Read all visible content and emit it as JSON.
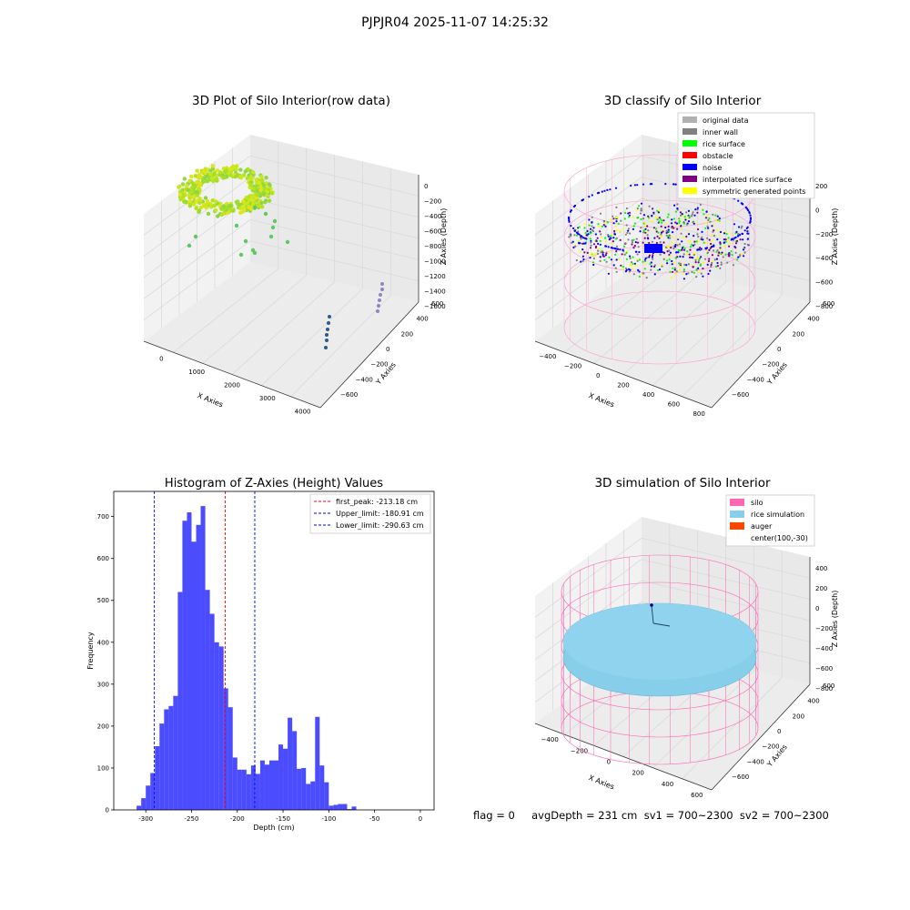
{
  "figure_title": "PJPJR04 2025-11-07 14:25:32",
  "panels": {
    "raw": {
      "title": "3D Plot of Silo Interior(row data)",
      "x_label": "X Axies",
      "y_label": "Y Axies",
      "z_label": "Z Axies (Depth)",
      "x_ticks": [
        "0",
        "1000",
        "2000",
        "3000",
        "4000"
      ],
      "y_ticks": [
        "600",
        "400",
        "200",
        "0",
        "−200",
        "−400",
        "−600"
      ],
      "z_ticks": [
        "0",
        "−200",
        "−400",
        "−600",
        "−800",
        "−1000",
        "−1200",
        "−1400",
        "−1600"
      ]
    },
    "classify": {
      "title": "3D classify of Silo Interior",
      "x_label": "X Axies",
      "y_label": "Y Axies",
      "z_label": "Z Axies (Depth)",
      "x_ticks": [
        "−400",
        "−200",
        "0",
        "200",
        "400",
        "600",
        "800"
      ],
      "y_ticks": [
        "600",
        "400",
        "200",
        "0",
        "−200",
        "−400",
        "−600"
      ],
      "z_ticks": [
        "200",
        "0",
        "−200",
        "−400",
        "−600",
        "−800"
      ],
      "legend": [
        {
          "label": "original data",
          "color": "#b0b0b0"
        },
        {
          "label": "inner wall",
          "color": "#808080"
        },
        {
          "label": "rice surface",
          "color": "#00ff00"
        },
        {
          "label": "obstacle",
          "color": "#ff0000"
        },
        {
          "label": "noise",
          "color": "#0000ff"
        },
        {
          "label": "interpolated rice surface",
          "color": "#800080"
        },
        {
          "label": "symmetric generated points",
          "color": "#ffff00"
        }
      ]
    },
    "simulation": {
      "title": "3D simulation of Silo Interior",
      "x_label": "X Axies",
      "y_label": "Y Axies",
      "z_label": "Z Axies (Depth)",
      "x_ticks": [
        "−400",
        "−200",
        "0",
        "200",
        "400",
        "600"
      ],
      "y_ticks": [
        "600",
        "400",
        "200",
        "0",
        "−200",
        "−400",
        "−600"
      ],
      "z_ticks": [
        "400",
        "200",
        "0",
        "−200",
        "−400",
        "−600",
        "−800"
      ],
      "legend": [
        {
          "label": "silo",
          "color": "#ff69b4"
        },
        {
          "label": "rice simulation",
          "color": "#87ceeb"
        },
        {
          "label": "auger",
          "color": "#ff4500"
        },
        {
          "label": "center(100,-30)",
          "color": ""
        }
      ]
    }
  },
  "status_line": "flag = 0     avgDepth = 231 cm  sv1 = 700~2300  sv2 = 700~2300",
  "chart_data": [
    {
      "type": "bar",
      "title": "Histogram of Z-Axies (Height) Values",
      "xlabel": "Depth (cm)",
      "ylabel": "Frequency",
      "bar_color": "#0000ff",
      "xlim": [
        -335,
        15
      ],
      "ylim": [
        0,
        760
      ],
      "x_ticks": [
        -300,
        -250,
        -200,
        -150,
        -100,
        -50,
        0
      ],
      "y_ticks": [
        0,
        100,
        200,
        300,
        400,
        500,
        600,
        700
      ],
      "bin_width": 5,
      "bins": [
        [
          -310,
          10
        ],
        [
          -305,
          28
        ],
        [
          -300,
          58
        ],
        [
          -295,
          88
        ],
        [
          -290,
          152
        ],
        [
          -285,
          206
        ],
        [
          -280,
          240
        ],
        [
          -275,
          248
        ],
        [
          -270,
          272
        ],
        [
          -265,
          520
        ],
        [
          -260,
          690
        ],
        [
          -255,
          710
        ],
        [
          -250,
          640
        ],
        [
          -245,
          680
        ],
        [
          -240,
          725
        ],
        [
          -235,
          525
        ],
        [
          -230,
          468
        ],
        [
          -225,
          400
        ],
        [
          -220,
          390
        ],
        [
          -215,
          290
        ],
        [
          -210,
          245
        ],
        [
          -205,
          125
        ],
        [
          -200,
          96
        ],
        [
          -195,
          96
        ],
        [
          -190,
          85
        ],
        [
          -185,
          106
        ],
        [
          -180,
          86
        ],
        [
          -175,
          118
        ],
        [
          -170,
          108
        ],
        [
          -165,
          118
        ],
        [
          -160,
          118
        ],
        [
          -155,
          156
        ],
        [
          -150,
          146
        ],
        [
          -145,
          220
        ],
        [
          -140,
          188
        ],
        [
          -135,
          98
        ],
        [
          -130,
          100
        ],
        [
          -125,
          62
        ],
        [
          -120,
          68
        ],
        [
          -115,
          222
        ],
        [
          -110,
          106
        ],
        [
          -105,
          66
        ],
        [
          -100,
          10
        ],
        [
          -95,
          12
        ],
        [
          -90,
          14
        ],
        [
          -85,
          14
        ],
        [
          -80,
          2
        ],
        [
          -75,
          8
        ]
      ],
      "lines": [
        {
          "label": "first_peak: -213.18 cm",
          "x": -213.18,
          "color": "#ff0000"
        },
        {
          "label": "Upper_limit: -180.91 cm",
          "x": -180.91,
          "color": "#0000ff"
        },
        {
          "label": "Lower_limit: -290.63 cm",
          "x": -290.63,
          "color": "#0000ff"
        }
      ]
    }
  ]
}
